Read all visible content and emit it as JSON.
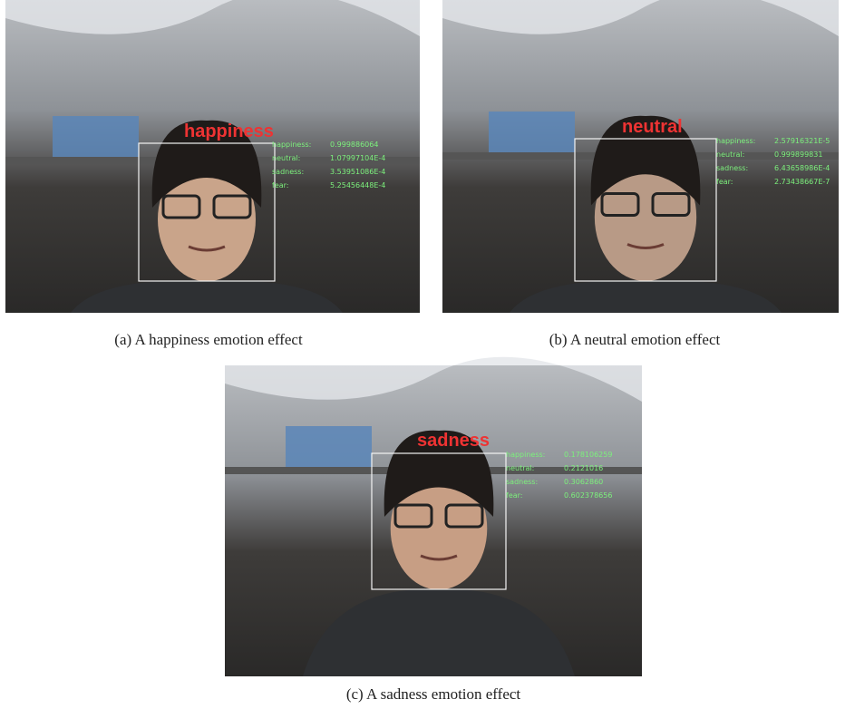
{
  "panels": [
    {
      "emotion": "happiness",
      "caption": "(a)  A happiness emotion effect",
      "scores": [
        [
          "happiness:",
          "0.999886064"
        ],
        [
          "neutral:",
          "1.07997104E-4"
        ],
        [
          "sadness:",
          "3.53951086E-4"
        ],
        [
          "fear:",
          "5.25456448E-4"
        ]
      ]
    },
    {
      "emotion": "neutral",
      "caption": "(b)  A neutral emotion effect",
      "scores": [
        [
          "happiness:",
          "2.57916321E-5"
        ],
        [
          "neutral:",
          "0.999899831"
        ],
        [
          "sadness:",
          "6.43658986E-4"
        ],
        [
          "fear:",
          "2.73438667E-7"
        ]
      ]
    },
    {
      "emotion": "sadness",
      "caption": "(c)  A sadness emotion effect",
      "scores": [
        [
          "happiness:",
          "0.178106259"
        ],
        [
          "neutral:",
          "0.2121016"
        ],
        [
          "sadness:",
          "0.3062860"
        ],
        [
          "fear:",
          "0.602378656"
        ]
      ]
    }
  ]
}
